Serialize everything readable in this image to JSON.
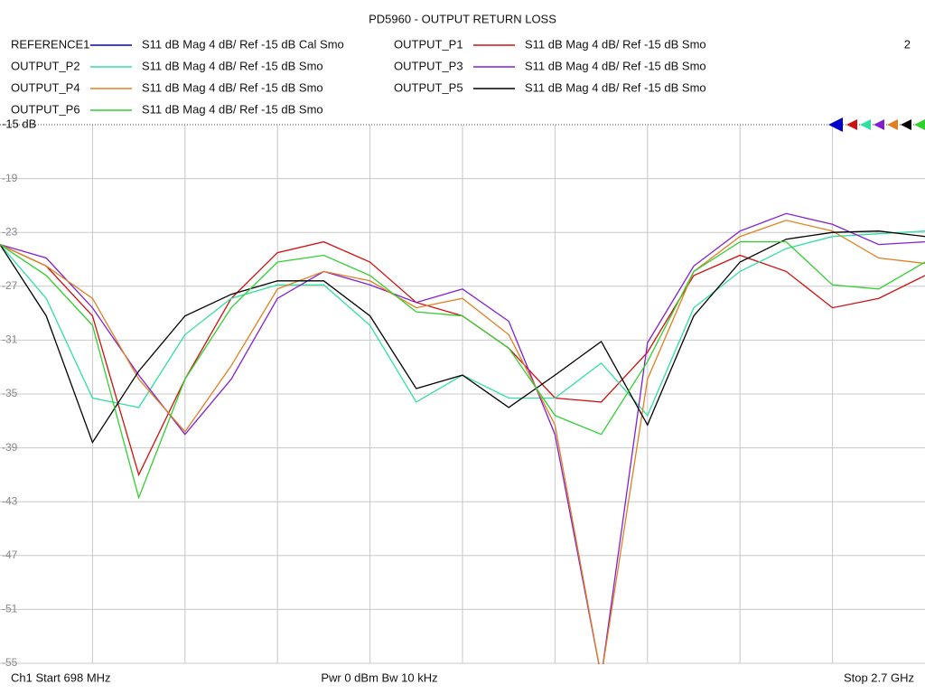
{
  "chart_data": {
    "type": "line",
    "title": "PD5960 - OUTPUT RETURN LOSS",
    "channel_number": "2",
    "footer_left": "Ch1  Start  698 MHz",
    "footer_center": "Pwr  0 dBm  Bw  10 kHz",
    "footer_right": "Stop  2.7 GHz",
    "xlim": [
      698,
      2700
    ],
    "ylim": [
      -55,
      -15
    ],
    "yticks": [
      {
        "value": -15,
        "label": "-15 dB"
      },
      -19,
      -23,
      -27,
      -31,
      -35,
      -39,
      -43,
      -47,
      -51,
      -55
    ],
    "grid": true,
    "x": [
      698,
      798.1,
      898.2,
      998.3,
      1098.4,
      1198.5,
      1298.6,
      1398.7,
      1498.8,
      1598.9,
      1699,
      1799.1,
      1899.2,
      1999.3,
      2099.4,
      2199.5,
      2299.6,
      2399.7,
      2499.8,
      2599.9,
      2700
    ],
    "series": [
      {
        "name": "REFERENCE1",
        "description": "S11  dB Mag  4 dB/ Ref -15 dB  Cal Smo",
        "color": "#0000cc",
        "values": [
          null,
          null,
          null,
          null,
          null,
          null,
          null,
          null,
          null,
          null,
          null,
          null,
          null,
          null,
          null,
          null,
          null,
          null,
          null,
          null,
          null
        ]
      },
      {
        "name": "OUTPUT_P1",
        "description": "S11  dB Mag  4 dB/ Ref -15 dB  Smo",
        "color": "#d01010",
        "values": [
          -23.9,
          -25.5,
          -29.2,
          -41.0,
          -33.9,
          -27.9,
          -24.5,
          -23.7,
          -25.2,
          -28.2,
          -29.2,
          -31.6,
          -35.3,
          -35.6,
          -31.9,
          -26.2,
          -24.7,
          -25.9,
          -28.6,
          -27.9,
          -26.2
        ]
      },
      {
        "name": "OUTPUT_P2",
        "description": "S11  dB Mag  4 dB/ Ref -15 dB  Smo",
        "color": "#30e0a0",
        "values": [
          -23.9,
          -27.9,
          -35.3,
          -36.0,
          -30.6,
          -27.9,
          -26.9,
          -26.9,
          -29.9,
          -35.6,
          -33.6,
          -35.3,
          -35.3,
          -32.7,
          -36.6,
          -28.6,
          -25.9,
          -24.2,
          -23.3,
          -23.1,
          -22.9
        ]
      },
      {
        "name": "OUTPUT_P3",
        "description": "S11  dB Mag  4 dB/ Ref -15 dB  Smo",
        "color": "#8020d0",
        "values": [
          -23.9,
          -24.9,
          -28.6,
          -33.6,
          -38.0,
          -33.9,
          -27.9,
          -25.9,
          -26.9,
          -28.2,
          -27.2,
          -29.6,
          -38.0,
          -56,
          -31.2,
          -25.5,
          -22.9,
          -21.6,
          -22.4,
          -23.9,
          -23.7
        ]
      },
      {
        "name": "OUTPUT_P4",
        "description": "S11  dB Mag  4 dB/ Ref -15 dB  Smo",
        "color": "#e08020",
        "values": [
          -23.9,
          -25.5,
          -27.9,
          -33.9,
          -37.8,
          -32.9,
          -27.2,
          -25.9,
          -26.6,
          -28.6,
          -27.9,
          -30.6,
          -37.3,
          -56,
          -33.9,
          -25.9,
          -23.3,
          -22.1,
          -22.9,
          -24.9,
          -25.3
        ]
      },
      {
        "name": "OUTPUT_P5",
        "description": "S11  dB Mag  4 dB/ Ref -15 dB  Smo",
        "color": "#000000",
        "values": [
          -23.9,
          -29.2,
          -38.6,
          -33.3,
          -29.2,
          -27.6,
          -26.6,
          -26.6,
          -29.2,
          -34.6,
          -33.6,
          -36.0,
          -33.6,
          -31.1,
          -37.3,
          -29.2,
          -25.2,
          -23.5,
          -23.0,
          -22.9,
          -23.3
        ]
      },
      {
        "name": "OUTPUT_P6",
        "description": "S11  dB Mag  4 dB/ Ref -15 dB  Smo",
        "color": "#30d030",
        "values": [
          -23.9,
          -26.2,
          -29.9,
          -42.7,
          -33.9,
          -28.6,
          -25.2,
          -24.7,
          -26.2,
          -28.9,
          -29.2,
          -31.6,
          -36.6,
          -38.0,
          -32.6,
          -25.9,
          -23.7,
          -23.7,
          -26.9,
          -27.2,
          -25.2
        ]
      }
    ]
  }
}
